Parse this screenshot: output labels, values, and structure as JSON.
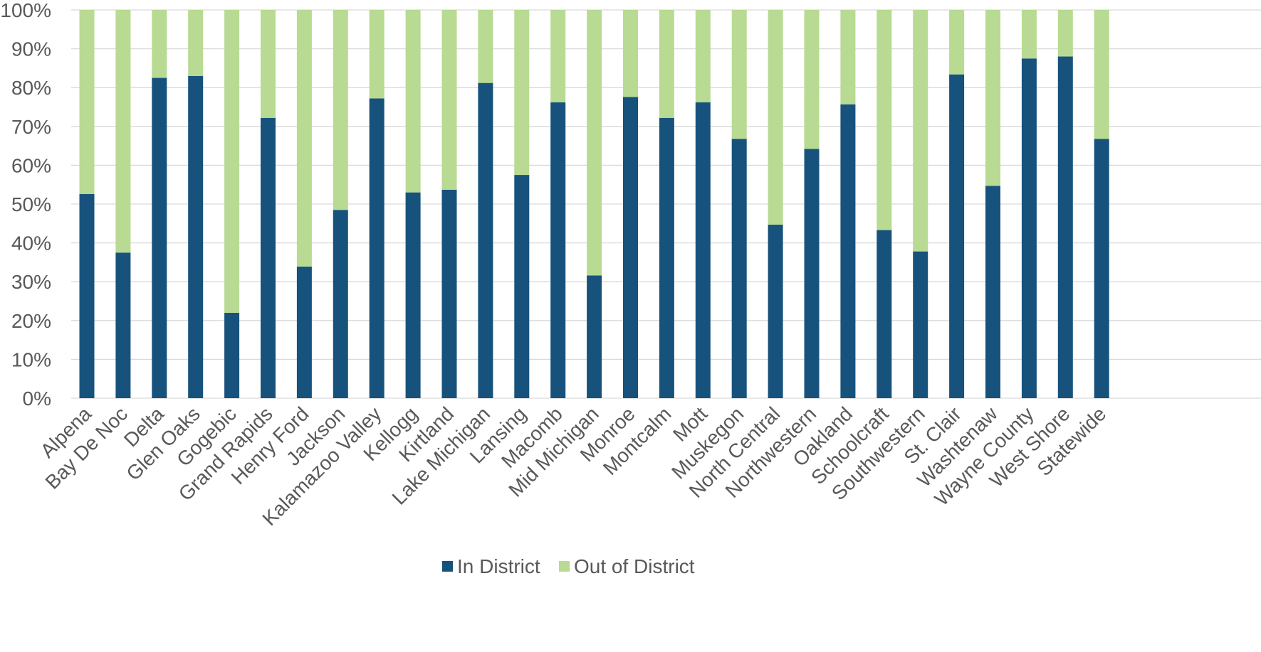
{
  "chart_data": {
    "type": "bar",
    "stacked": true,
    "percent": true,
    "categories": [
      "Alpena",
      "Bay De Noc",
      "Delta",
      "Glen Oaks",
      "Gogebic",
      "Grand Rapids",
      "Henry Ford",
      "Jackson",
      "Kalamazoo Valley",
      "Kellogg",
      "Kirtland",
      "Lake Michigan",
      "Lansing",
      "Macomb",
      "Mid Michigan",
      "Monroe",
      "Montcalm",
      "Mott",
      "Muskegon",
      "North Central",
      "Northwestern",
      "Oakland",
      "Schoolcraft",
      "Southwestern",
      "St. Clair",
      "Washtenaw",
      "Wayne County",
      "West Shore",
      "Statewide"
    ],
    "series": [
      {
        "name": "In District",
        "color": "#17527D",
        "values": [
          52.6,
          37.5,
          82.5,
          83.0,
          22.0,
          72.2,
          33.9,
          48.5,
          77.2,
          53.0,
          53.7,
          81.2,
          57.5,
          76.2,
          31.6,
          77.6,
          72.2,
          76.2,
          66.8,
          44.7,
          64.2,
          75.7,
          43.3,
          37.8,
          83.4,
          54.7,
          87.5,
          88.0,
          66.8
        ]
      },
      {
        "name": "Out of District",
        "color": "#B8DA92",
        "values": [
          47.4,
          62.5,
          17.5,
          17.0,
          78.0,
          27.8,
          66.1,
          51.5,
          22.8,
          47.0,
          46.3,
          18.8,
          42.5,
          23.8,
          68.4,
          22.4,
          27.8,
          23.8,
          33.2,
          55.3,
          35.8,
          24.3,
          56.7,
          62.2,
          16.6,
          45.3,
          12.5,
          12.0,
          33.2
        ]
      }
    ],
    "ylim": [
      0,
      100
    ],
    "yticks": [
      "0%",
      "10%",
      "20%",
      "30%",
      "40%",
      "50%",
      "60%",
      "70%",
      "80%",
      "90%",
      "100%"
    ],
    "gridlines": true,
    "legend_position": "bottom",
    "title": "",
    "xlabel": "",
    "ylabel": ""
  }
}
